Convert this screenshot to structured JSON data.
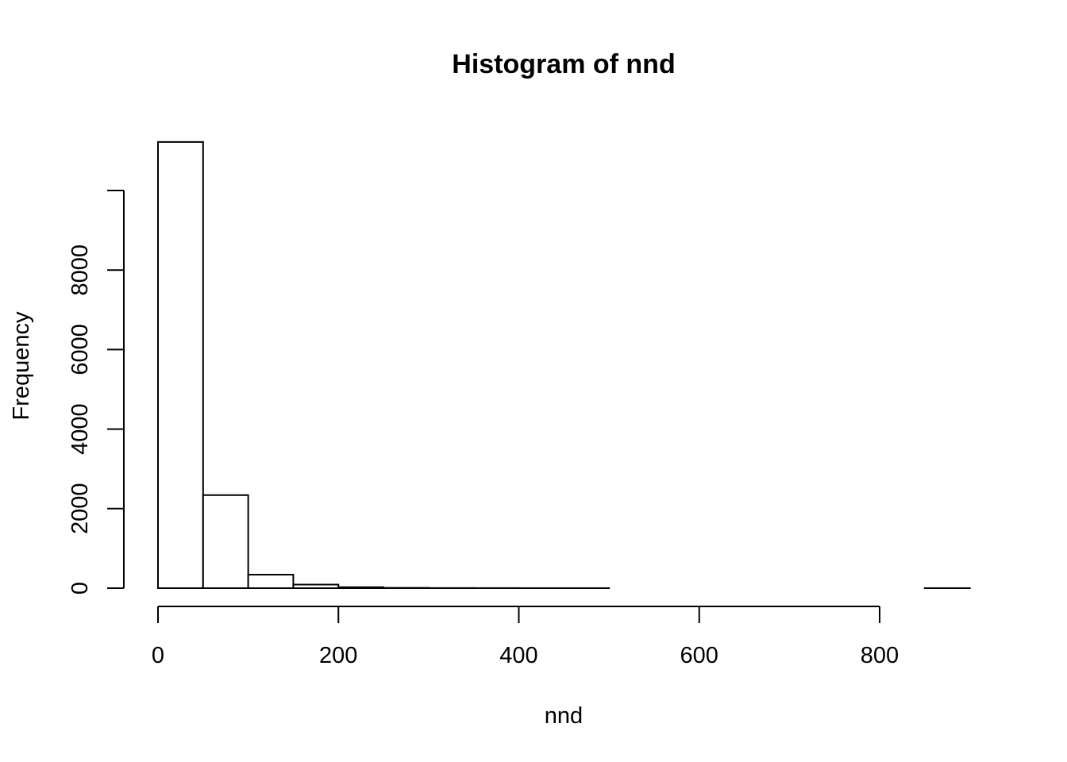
{
  "chart_data": {
    "type": "bar",
    "title": "Histogram of nnd",
    "xlabel": "nnd",
    "ylabel": "Frequency",
    "bin_edges": [
      0,
      50,
      100,
      150,
      200,
      250,
      300,
      350,
      400,
      450,
      500,
      550,
      600,
      650,
      700,
      750,
      800,
      850,
      900
    ],
    "values": [
      11220,
      2340,
      340,
      90,
      25,
      8,
      3,
      2,
      1,
      1,
      0,
      0,
      0,
      0,
      0,
      0,
      0,
      1
    ],
    "xlim": [
      0,
      900
    ],
    "ylim": [
      0,
      12000
    ],
    "xticks": [
      0,
      200,
      400,
      600,
      800
    ],
    "yticks": [
      0,
      2000,
      4000,
      6000,
      8000,
      10000
    ],
    "ytick_labels": [
      "0",
      "2000",
      "4000",
      "6000",
      "8000",
      ""
    ],
    "grid": false,
    "legend": "none",
    "colors": {
      "bar_fill": "#ffffff",
      "bar_stroke": "#000000"
    }
  }
}
